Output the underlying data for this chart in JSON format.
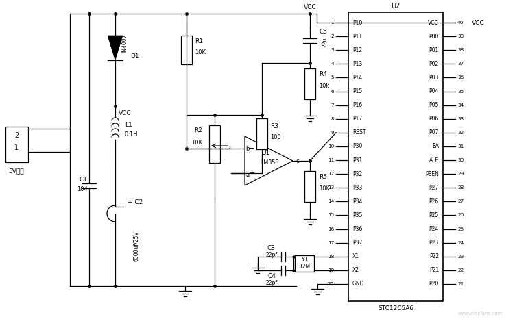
{
  "bg_color": "#ffffff",
  "line_color": "#000000",
  "fig_width": 7.7,
  "fig_height": 4.69,
  "dpi": 100,
  "ic_left_pins": [
    [
      1,
      "P10"
    ],
    [
      2,
      "P11"
    ],
    [
      3,
      "P12"
    ],
    [
      4,
      "P13"
    ],
    [
      5,
      "P14"
    ],
    [
      6,
      "P15"
    ],
    [
      7,
      "P16"
    ],
    [
      8,
      "P17"
    ],
    [
      9,
      "REST"
    ],
    [
      10,
      "P30"
    ],
    [
      11,
      "P31"
    ],
    [
      12,
      "P32"
    ],
    [
      13,
      "P33"
    ],
    [
      14,
      "P34"
    ],
    [
      15,
      "P35"
    ],
    [
      16,
      "P36"
    ],
    [
      17,
      "P37"
    ],
    [
      18,
      "X1"
    ],
    [
      19,
      "X2"
    ],
    [
      20,
      "GND"
    ]
  ],
  "ic_right_pins": [
    [
      40,
      "VCC"
    ],
    [
      39,
      "P00"
    ],
    [
      38,
      "P01"
    ],
    [
      37,
      "P02"
    ],
    [
      36,
      "P03"
    ],
    [
      35,
      "P04"
    ],
    [
      34,
      "P05"
    ],
    [
      33,
      "P06"
    ],
    [
      32,
      "P07"
    ],
    [
      31,
      "EA"
    ],
    [
      30,
      "ALE"
    ],
    [
      29,
      "PSEN"
    ],
    [
      28,
      "P27"
    ],
    [
      27,
      "P26"
    ],
    [
      26,
      "P25"
    ],
    [
      25,
      "P24"
    ],
    [
      24,
      "P23"
    ],
    [
      23,
      "P22"
    ],
    [
      22,
      "P21"
    ],
    [
      21,
      "P20"
    ]
  ],
  "watermark": "www.elecfans.com"
}
